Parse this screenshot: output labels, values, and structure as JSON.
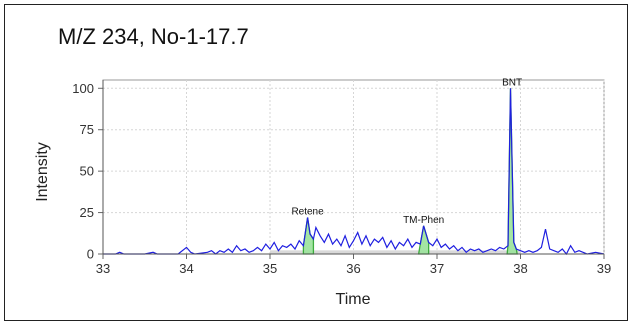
{
  "chart_data": {
    "type": "line",
    "title": "M/Z 234, No-1-17.7",
    "xlabel": "Time",
    "ylabel": "Intensity",
    "xlim": [
      33,
      39
    ],
    "ylim": [
      0,
      105
    ],
    "grid": true,
    "x_ticks": [
      "33",
      "34",
      "35",
      "36",
      "37",
      "38",
      "39"
    ],
    "y_ticks": [
      "0",
      "25",
      "50",
      "75",
      "100"
    ],
    "colors": {
      "signal": "#1f1fe0",
      "peak_fill": "#9be39b",
      "peak_outline": "#2aa52a",
      "baseline_fill": "#d0d0d0"
    },
    "series": [
      {
        "x": [
          33.0,
          33.15,
          33.2,
          33.25,
          33.5,
          33.6,
          33.65,
          33.7,
          33.9,
          34.0,
          34.05,
          34.1,
          34.25,
          34.3,
          34.35,
          34.4,
          34.45,
          34.5,
          34.55,
          34.6,
          34.65,
          34.7,
          34.75,
          34.8,
          34.85,
          34.9,
          34.95,
          35.0,
          35.05,
          35.1,
          35.15,
          35.2,
          35.25,
          35.3,
          35.35,
          35.4,
          35.45,
          35.48,
          35.52,
          35.55,
          35.6,
          35.65,
          35.7,
          35.75,
          35.8,
          35.85,
          35.9,
          35.95,
          36.0,
          36.05,
          36.1,
          36.15,
          36.2,
          36.25,
          36.3,
          36.35,
          36.4,
          36.45,
          36.5,
          36.55,
          36.6,
          36.65,
          36.7,
          36.75,
          36.8,
          36.84,
          36.87,
          36.9,
          36.95,
          37.0,
          37.05,
          37.1,
          37.15,
          37.2,
          37.25,
          37.3,
          37.35,
          37.4,
          37.45,
          37.5,
          37.55,
          37.6,
          37.65,
          37.7,
          37.75,
          37.8,
          37.85,
          37.88,
          37.92,
          37.95,
          38.0,
          38.05,
          38.1,
          38.15,
          38.2,
          38.25,
          38.3,
          38.35,
          38.4,
          38.45,
          38.5,
          38.55,
          38.6,
          38.65,
          38.7,
          38.8,
          38.9,
          39.0
        ],
        "y": [
          0,
          0,
          1,
          0,
          0,
          1,
          0,
          0,
          0,
          4,
          1,
          0,
          1,
          2,
          0,
          2,
          1,
          3,
          1,
          5,
          2,
          3,
          1,
          2,
          4,
          2,
          6,
          3,
          7,
          2,
          5,
          4,
          6,
          3,
          8,
          5,
          22,
          12,
          9,
          16,
          11,
          7,
          12,
          6,
          9,
          5,
          11,
          4,
          8,
          13,
          6,
          11,
          5,
          9,
          7,
          10,
          4,
          8,
          3,
          7,
          5,
          9,
          4,
          7,
          6,
          17,
          12,
          7,
          5,
          9,
          4,
          6,
          3,
          5,
          2,
          4,
          1,
          3,
          2,
          3,
          1,
          2,
          3,
          2,
          4,
          3,
          5,
          100,
          7,
          3,
          2,
          1,
          2,
          1,
          2,
          4,
          15,
          3,
          2,
          1,
          3,
          0,
          5,
          1,
          2,
          0,
          1,
          0
        ]
      }
    ],
    "peaks": [
      {
        "label": "Retene",
        "x": 35.45,
        "y": 22,
        "start": 35.4,
        "end": 35.52
      },
      {
        "label": "TM-Phen",
        "x": 36.84,
        "y": 17,
        "start": 36.78,
        "end": 36.9
      },
      {
        "label": "BNT",
        "x": 37.9,
        "y": 100,
        "start": 37.84,
        "end": 37.96
      }
    ]
  }
}
